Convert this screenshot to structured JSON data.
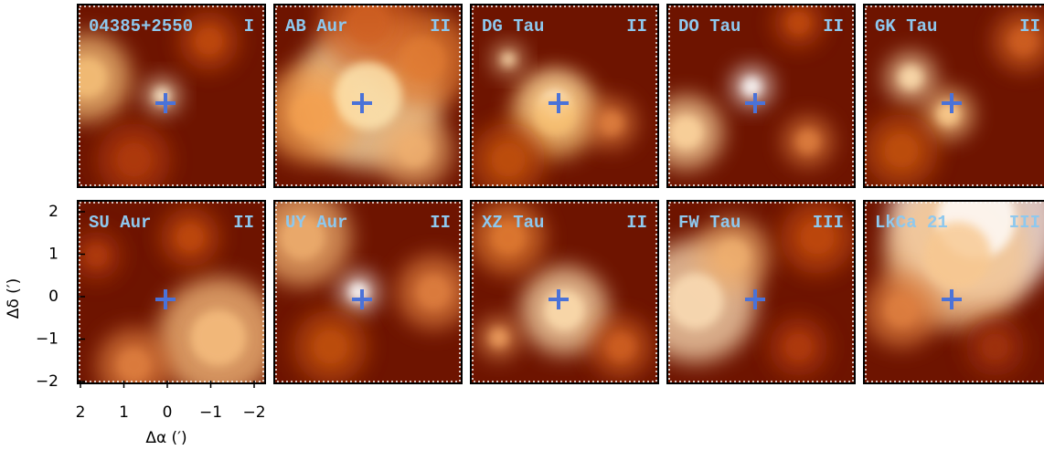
{
  "panels": [
    {
      "name": "04385+2550",
      "class": "I"
    },
    {
      "name": "AB Aur",
      "class": "II"
    },
    {
      "name": "DG Tau",
      "class": "II"
    },
    {
      "name": "DO Tau",
      "class": "II"
    },
    {
      "name": "GK Tau",
      "class": "II"
    },
    {
      "name": "SU Aur",
      "class": "II"
    },
    {
      "name": "UY Aur",
      "class": "II"
    },
    {
      "name": "XZ Tau",
      "class": "II"
    },
    {
      "name": "FW Tau",
      "class": "III"
    },
    {
      "name": "LkCa 21",
      "class": "III"
    }
  ],
  "y_axis": {
    "label": "Δδ (′)",
    "ticks": [
      "2",
      "1",
      "0",
      "−1",
      "−2"
    ]
  },
  "x_axis": {
    "label": "Δα (′)",
    "ticks": [
      "2",
      "1",
      "0",
      "−1",
      "−2"
    ]
  }
}
